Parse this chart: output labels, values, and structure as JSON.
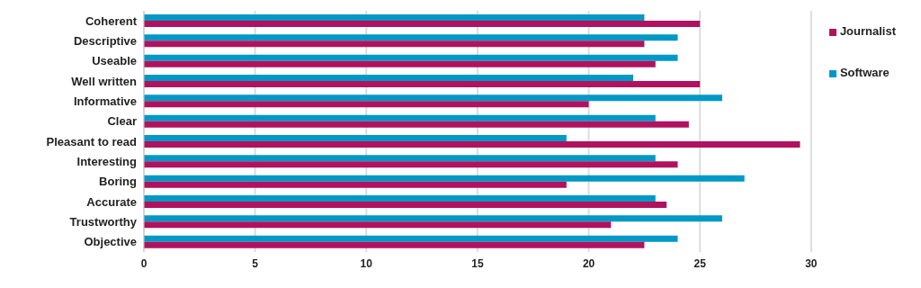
{
  "chart_data": {
    "type": "bar",
    "orientation": "horizontal",
    "categories": [
      "Coherent",
      "Descriptive",
      "Useable",
      "Well written",
      "Informative",
      "Clear",
      "Pleasant to read",
      "Interesting",
      "Boring",
      "Accurate",
      "Trustworthy",
      "Objective"
    ],
    "series": [
      {
        "name": "Software",
        "color": "#0099c6",
        "values": [
          22.5,
          24,
          24,
          22,
          26,
          23,
          19,
          23,
          27,
          23,
          26,
          24
        ]
      },
      {
        "name": "Journalist",
        "color": "#b0125f",
        "values": [
          25,
          22.5,
          23,
          25,
          20,
          24.5,
          29.5,
          24,
          19,
          23.5,
          21,
          22.5
        ]
      }
    ],
    "xlim": [
      0,
      30
    ],
    "xticks": [
      0,
      5,
      10,
      15,
      20,
      25,
      30
    ],
    "grid": "x",
    "legend": "top right"
  }
}
